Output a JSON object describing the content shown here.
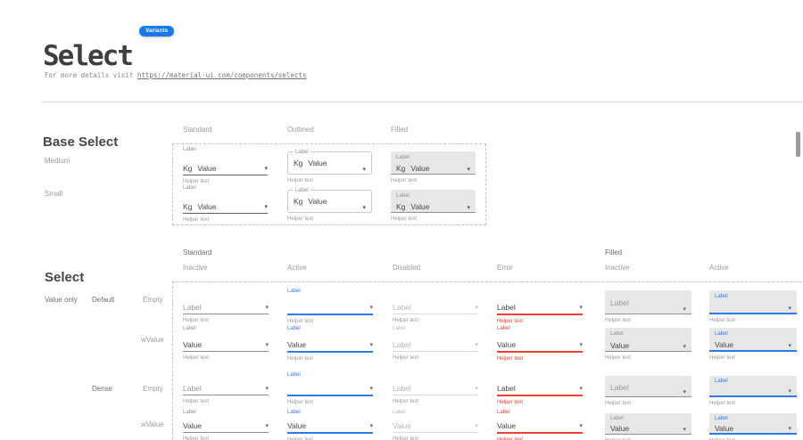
{
  "header": {
    "title": "Select",
    "badge": "Variants",
    "intro_prefix": "For more details visit ",
    "intro_link": "https://material-ui.com/components/selects"
  },
  "colors": {
    "accent": "#2d7cee",
    "badge": "#1a78ea",
    "error": "#ee4035",
    "filled-bg": "#e7e7e7",
    "dash": "#b7bfee"
  },
  "base_select": {
    "heading": "Base Select",
    "columns": [
      "Standard",
      "Outlined",
      "Filled"
    ],
    "rows": [
      "Medium",
      "Small"
    ],
    "cell": {
      "label": "Label",
      "prefix": "Kg",
      "value": "Value",
      "helper": "Helper text"
    }
  },
  "select_grid": {
    "heading": "Select",
    "group_headers": [
      "Standard",
      "Filled"
    ],
    "column_headers": [
      "Inactive",
      "Active",
      "Disabled",
      "Error",
      "Inactive",
      "Active"
    ],
    "side_labels": [
      {
        "text": "Value only",
        "emphasis": true
      },
      {
        "text": "Default",
        "emphasis": true
      },
      {
        "text": "Empty"
      },
      {
        "text": "wValue"
      },
      {
        "text": "Dense",
        "emphasis": true
      },
      {
        "text": "Empty"
      },
      {
        "text": "wValue"
      }
    ],
    "rows": [
      {
        "name": "default-empty",
        "dense": false,
        "cells": [
          {
            "variant": "standard",
            "state": "inactive",
            "float_label": "",
            "text": "Label",
            "text_style": "muted",
            "helper": "Helper text"
          },
          {
            "variant": "standard",
            "state": "active",
            "float_label": "Label",
            "text": "",
            "text_style": "muted",
            "helper": "Helper text"
          },
          {
            "variant": "standard",
            "state": "disabled",
            "float_label": "",
            "text": "Label",
            "text_style": "muted",
            "helper": "Helper text"
          },
          {
            "variant": "standard",
            "state": "error",
            "float_label": "",
            "text": "Label",
            "text_style": "dark",
            "helper": "Helper text"
          },
          {
            "variant": "filled",
            "state": "inactive",
            "float_label": "",
            "text": "Label",
            "text_style": "muted",
            "helper": "Helper text"
          },
          {
            "variant": "filled",
            "state": "active",
            "float_label": "Label",
            "text": "",
            "text_style": "muted",
            "helper": "Helper text"
          }
        ]
      },
      {
        "name": "default-wvalue",
        "dense": false,
        "cells": [
          {
            "variant": "standard",
            "state": "inactive",
            "float_label": "Label",
            "text": "Value",
            "text_style": "dark",
            "helper": "Helper text"
          },
          {
            "variant": "standard",
            "state": "active",
            "float_label": "Label",
            "text": "Value",
            "text_style": "dark",
            "helper": "Helper text"
          },
          {
            "variant": "standard",
            "state": "disabled",
            "float_label": "Label",
            "text": "Label",
            "text_style": "muted",
            "helper": "Helper text"
          },
          {
            "variant": "standard",
            "state": "error",
            "float_label": "Label",
            "text": "Value",
            "text_style": "dark",
            "helper": "Helper text"
          },
          {
            "variant": "filled",
            "state": "inactive",
            "float_label": "Label",
            "text": "Value",
            "text_style": "dark",
            "helper": "Helper text"
          },
          {
            "variant": "filled",
            "state": "active",
            "float_label": "Label",
            "text": "Value",
            "text_style": "dark",
            "helper": "Helper text"
          }
        ]
      },
      {
        "name": "dense-empty",
        "dense": true,
        "cells": [
          {
            "variant": "standard",
            "state": "inactive",
            "float_label": "",
            "text": "Label",
            "text_style": "muted",
            "helper": "Helper text"
          },
          {
            "variant": "standard",
            "state": "active",
            "float_label": "Label",
            "text": "",
            "text_style": "muted",
            "helper": "Helper text"
          },
          {
            "variant": "standard",
            "state": "disabled",
            "float_label": "",
            "text": "Label",
            "text_style": "muted",
            "helper": "Helper text"
          },
          {
            "variant": "standard",
            "state": "error",
            "float_label": "",
            "text": "Label",
            "text_style": "dark",
            "helper": "Helper text"
          },
          {
            "variant": "filled",
            "state": "inactive",
            "float_label": "",
            "text": "Label",
            "text_style": "muted",
            "helper": "Helper text"
          },
          {
            "variant": "filled",
            "state": "active",
            "float_label": "Label",
            "text": "",
            "text_style": "muted",
            "helper": "Helper text"
          }
        ]
      },
      {
        "name": "dense-wvalue",
        "dense": true,
        "cells": [
          {
            "variant": "standard",
            "state": "inactive",
            "float_label": "Label",
            "text": "Value",
            "text_style": "dark",
            "helper": "Helper text"
          },
          {
            "variant": "standard",
            "state": "active",
            "float_label": "Label",
            "text": "Value",
            "text_style": "dark",
            "helper": "Helper text"
          },
          {
            "variant": "standard",
            "state": "disabled",
            "float_label": "Label",
            "text": "Value",
            "text_style": "muted",
            "helper": "Helper text"
          },
          {
            "variant": "standard",
            "state": "error",
            "float_label": "Label",
            "text": "Value",
            "text_style": "dark",
            "helper": "Helper text"
          },
          {
            "variant": "filled",
            "state": "inactive",
            "float_label": "Label",
            "text": "Value",
            "text_style": "dark",
            "helper": "Helper text"
          },
          {
            "variant": "filled",
            "state": "active",
            "float_label": "Label",
            "text": "Value",
            "text_style": "dark",
            "helper": "Helper text"
          }
        ]
      }
    ]
  }
}
